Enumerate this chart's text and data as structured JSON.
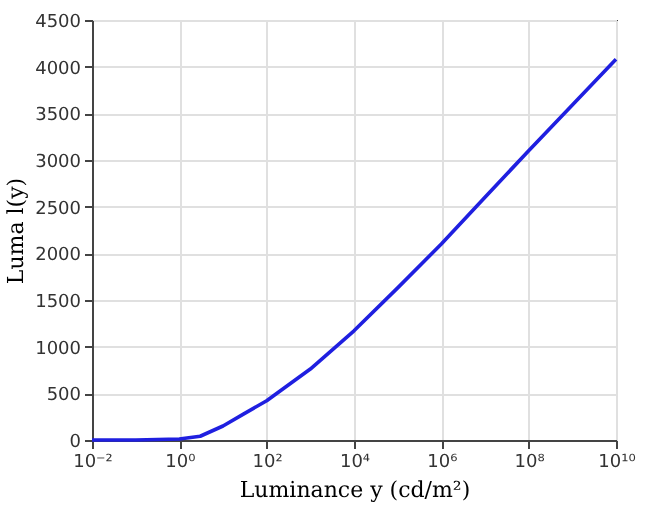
{
  "chart_data": {
    "type": "line",
    "xlabel": "Luminance y (cd/m²)",
    "ylabel": "Luma l(y)",
    "log": "x",
    "x": [
      0.01,
      0.1,
      1,
      3,
      10,
      30,
      100,
      1000,
      10000,
      100000,
      1000000,
      10000000,
      100000000,
      1000000000,
      10000000000
    ],
    "series": [
      {
        "color": "#1f1fe0",
        "values": [
          0,
          0,
          10,
          40,
          150,
          280,
          420,
          760,
          1170,
          1630,
          2100,
          2600,
          3100,
          3590,
          4080
        ]
      }
    ],
    "xlim": [
      0.01,
      10000000000
    ],
    "xticks": [
      {
        "value": 0.01,
        "label": "10⁻²"
      },
      {
        "value": 1,
        "label": "10⁰"
      },
      {
        "value": 100,
        "label": "10²"
      },
      {
        "value": 10000,
        "label": "10⁴"
      },
      {
        "value": 1000000,
        "label": "10⁶"
      },
      {
        "value": 100000000,
        "label": "10⁸"
      },
      {
        "value": 10000000000,
        "label": "10¹⁰"
      }
    ],
    "ylim": [
      0,
      4500
    ],
    "yticks": [
      0,
      500,
      1000,
      1500,
      2000,
      2500,
      3000,
      3500,
      4000,
      4500
    ],
    "grid": true,
    "marker": "none",
    "line_style": "solid"
  }
}
